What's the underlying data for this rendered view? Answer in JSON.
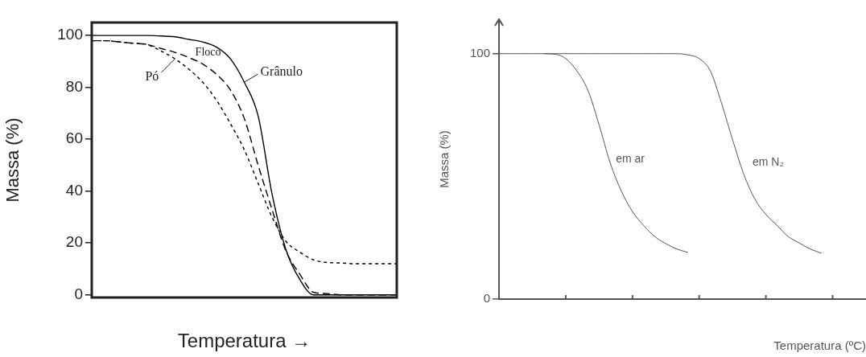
{
  "chart_data": [
    {
      "type": "line",
      "xlabel": "Temperatura →",
      "ylabel": "Massa (%)",
      "categories": [
        null,
        null,
        null,
        null,
        null,
        null,
        null,
        null,
        null,
        null,
        null,
        null,
        null,
        null,
        null,
        null,
        null,
        null,
        null,
        null,
        null,
        null,
        null
      ],
      "ylim": [
        -1,
        105
      ],
      "yticks": [
        0,
        20,
        40,
        60,
        80,
        100
      ],
      "tick_labels": "y",
      "marker": "none",
      "series": [
        {
          "name": "Grânulo",
          "color": "#000000",
          "line_style": "solid",
          "values": [
            100,
            100,
            100,
            100,
            100,
            99.8,
            99.5,
            98.5,
            97.5,
            95.5,
            91,
            82,
            69,
            39,
            17.5,
            6,
            0,
            0,
            0,
            0,
            0,
            0,
            0
          ]
        },
        {
          "name": "Floco",
          "color": "#000000",
          "line_style": "dashed",
          "values": [
            98,
            98,
            97.5,
            97,
            96.5,
            95,
            93.5,
            91.5,
            89,
            85,
            79,
            68,
            50,
            33,
            17,
            8,
            1,
            0.5,
            0,
            0,
            0,
            0,
            0
          ]
        },
        {
          "name": "Pó",
          "color": "#000000",
          "line_style": "dotted",
          "values": [
            98,
            98,
            97.5,
            97,
            96.5,
            94,
            91,
            87,
            82,
            75,
            66,
            56,
            43,
            30,
            20.7,
            16.5,
            13.5,
            12.5,
            12.3,
            12,
            12,
            12,
            12
          ]
        }
      ]
    },
    {
      "type": "line",
      "xlabel": "Temperatura (ºC)",
      "ylabel": "Massa (%)",
      "categories": [
        null,
        null,
        null,
        null,
        null,
        null,
        null,
        null,
        null,
        null,
        null,
        null,
        null,
        null,
        null,
        null,
        null,
        null,
        null,
        null,
        null,
        null,
        null,
        null,
        null,
        null,
        null,
        null,
        null,
        null,
        null,
        null,
        null,
        null
      ],
      "ylim": [
        0,
        114
      ],
      "yticks": [
        0,
        100
      ],
      "tick_labels": "y",
      "marker": "none",
      "series": [
        {
          "name": "em ar",
          "color": "#555555",
          "line_style": "solid",
          "values": [
            null,
            null,
            null,
            null,
            100,
            99.8,
            98,
            93,
            85,
            71,
            55.5,
            44,
            35.7,
            30,
            25.5,
            22.6,
            20.4,
            19,
            null,
            null,
            null,
            null,
            null,
            null,
            null,
            null,
            null,
            null,
            null,
            null,
            null,
            null,
            null,
            null
          ]
        },
        {
          "name": "em N₂",
          "color": "#555555",
          "line_style": "solid",
          "values": [
            100,
            100,
            100,
            100,
            100,
            100,
            100,
            100,
            100,
            100,
            100,
            100,
            100,
            100,
            100,
            100,
            100,
            99.5,
            98,
            93,
            80,
            65,
            51,
            40.8,
            34.5,
            30,
            25.5,
            22.9,
            20.4,
            18.7,
            null,
            null,
            null,
            null
          ]
        }
      ]
    }
  ]
}
